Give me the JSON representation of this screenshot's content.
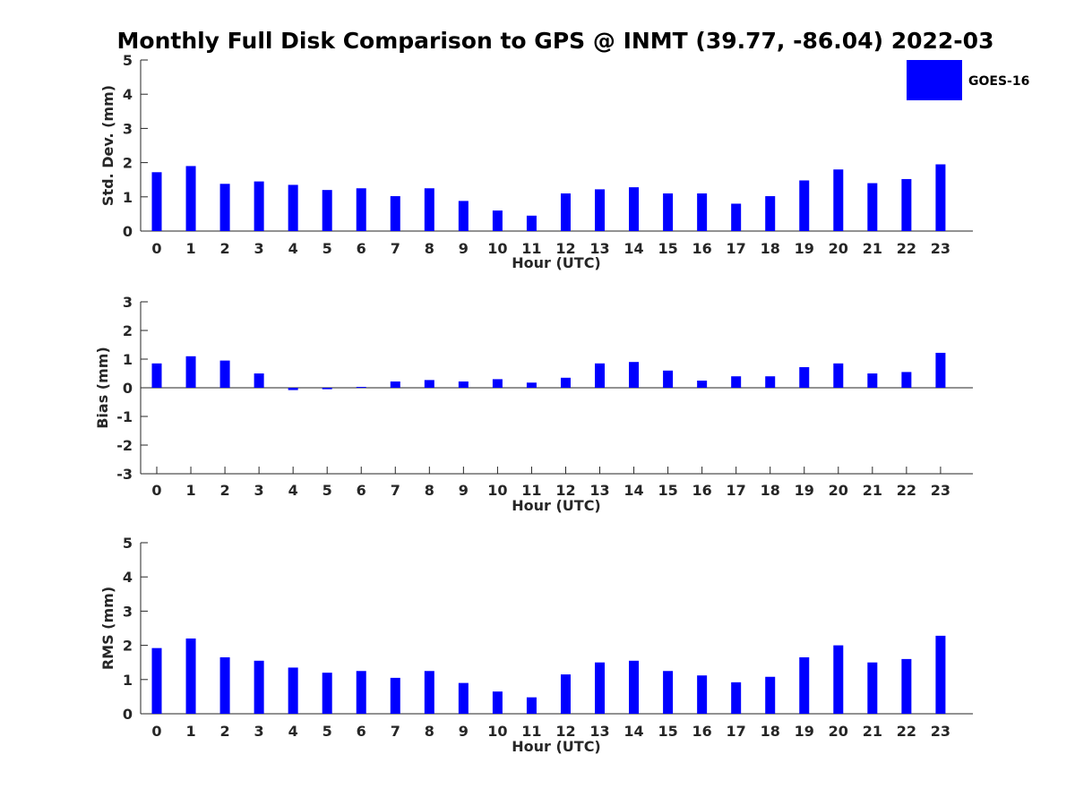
{
  "title": "Monthly Full Disk Comparison to GPS @ INMT (39.77, -86.04) 2022-03",
  "legend": {
    "label": "GOES-16",
    "color": "#0000ff",
    "placement": "top-right"
  },
  "chart_data": [
    {
      "type": "bar",
      "xlabel": "Hour (UTC)",
      "ylabel": "Std. Dev. (mm)",
      "ylim": [
        0,
        5
      ],
      "yticks": [
        "0",
        "1",
        "2",
        "3",
        "4",
        "5"
      ],
      "categories": [
        "0",
        "1",
        "2",
        "3",
        "4",
        "5",
        "6",
        "7",
        "8",
        "9",
        "10",
        "11",
        "12",
        "13",
        "14",
        "15",
        "16",
        "17",
        "18",
        "19",
        "20",
        "21",
        "22",
        "23"
      ],
      "series": [
        {
          "name": "GOES-16",
          "color": "#0000ff",
          "values": [
            1.72,
            1.9,
            1.38,
            1.45,
            1.35,
            1.2,
            1.25,
            1.02,
            1.25,
            0.88,
            0.6,
            0.45,
            1.1,
            1.22,
            1.28,
            1.1,
            1.1,
            0.8,
            1.02,
            1.48,
            1.8,
            1.4,
            1.52,
            1.95
          ]
        }
      ]
    },
    {
      "type": "bar",
      "xlabel": "Hour (UTC)",
      "ylabel": "Bias (mm)",
      "ylim": [
        -3,
        3
      ],
      "yticks": [
        "-3",
        "-2",
        "-1",
        "0",
        "1",
        "2",
        "3"
      ],
      "zero_line": true,
      "categories": [
        "0",
        "1",
        "2",
        "3",
        "4",
        "5",
        "6",
        "7",
        "8",
        "9",
        "10",
        "11",
        "12",
        "13",
        "14",
        "15",
        "16",
        "17",
        "18",
        "19",
        "20",
        "21",
        "22",
        "23"
      ],
      "series": [
        {
          "name": "GOES-16",
          "color": "#0000ff",
          "values": [
            0.85,
            1.1,
            0.95,
            0.5,
            -0.08,
            -0.05,
            0.03,
            0.22,
            0.27,
            0.22,
            0.3,
            0.18,
            0.35,
            0.85,
            0.9,
            0.6,
            0.25,
            0.4,
            0.4,
            0.72,
            0.85,
            0.5,
            0.55,
            1.22
          ]
        }
      ]
    },
    {
      "type": "bar",
      "xlabel": "Hour (UTC)",
      "ylabel": "RMS (mm)",
      "ylim": [
        0,
        5
      ],
      "yticks": [
        "0",
        "1",
        "2",
        "3",
        "4",
        "5"
      ],
      "categories": [
        "0",
        "1",
        "2",
        "3",
        "4",
        "5",
        "6",
        "7",
        "8",
        "9",
        "10",
        "11",
        "12",
        "13",
        "14",
        "15",
        "16",
        "17",
        "18",
        "19",
        "20",
        "21",
        "22",
        "23"
      ],
      "series": [
        {
          "name": "GOES-16",
          "color": "#0000ff",
          "values": [
            1.92,
            2.2,
            1.65,
            1.55,
            1.35,
            1.2,
            1.25,
            1.05,
            1.25,
            0.9,
            0.65,
            0.48,
            1.15,
            1.5,
            1.55,
            1.25,
            1.12,
            0.92,
            1.08,
            1.65,
            2.0,
            1.5,
            1.6,
            2.28
          ]
        }
      ]
    }
  ]
}
